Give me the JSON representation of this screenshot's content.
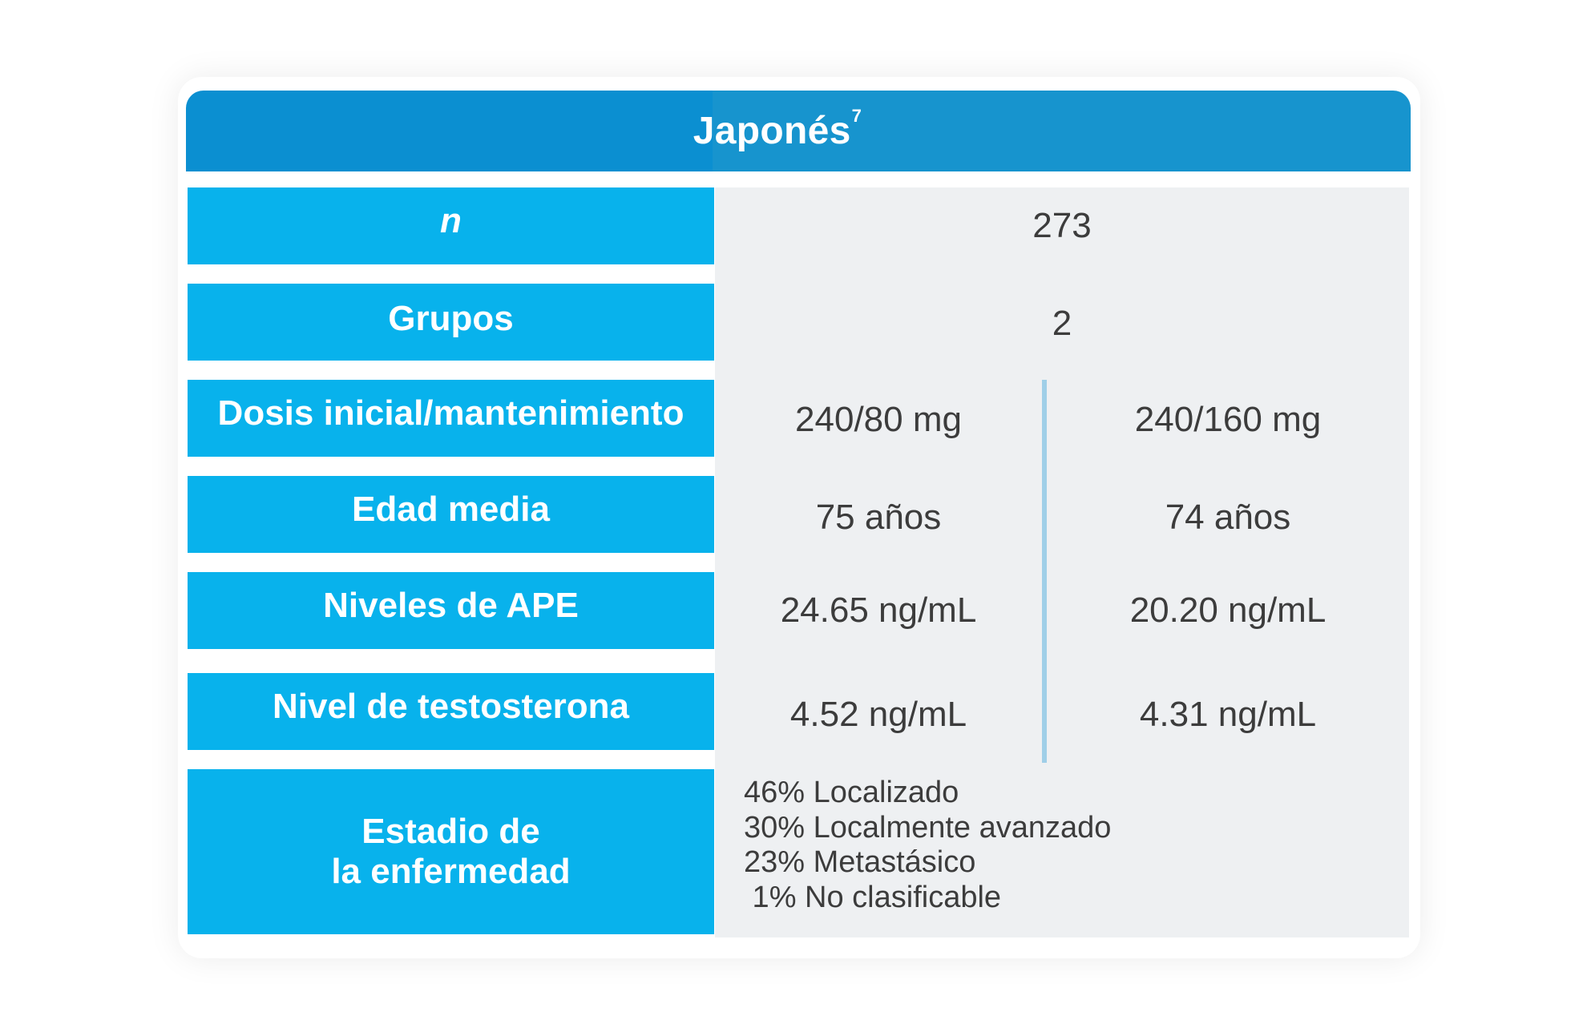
{
  "header": {
    "title": "Japonés",
    "superscript": "7"
  },
  "rows": {
    "n": {
      "label": "n",
      "value": "273"
    },
    "grupos": {
      "label": "Grupos",
      "value": "2"
    },
    "dosis": {
      "label": "Dosis inicial/mantenimiento",
      "value_a": "240/80 mg",
      "value_b": "240/160 mg"
    },
    "edad": {
      "label": "Edad media",
      "value_a": "75 años",
      "value_b": "74 años"
    },
    "ape": {
      "label": "Niveles de APE",
      "value_a": "24.65 ng/mL",
      "value_b": "20.20 ng/mL"
    },
    "testosterona": {
      "label": "Nivel de testosterona",
      "value_a": "4.52 ng/mL",
      "value_b": "4.31 ng/mL"
    },
    "estadio": {
      "label_line1": "Estadio de",
      "label_line2": "la enfermedad",
      "items": [
        "46% Localizado",
        "30% Localmente avanzado",
        "23% Metastásico",
        " 1% No clasificable"
      ]
    }
  },
  "colors": {
    "header_left": "#0b8fd1",
    "header_right": "#1794ce",
    "label_bg": "#08b2ec",
    "value_bg": "#eef0f2",
    "divider": "#9fcfe8",
    "value_text": "#3c3c3c"
  }
}
